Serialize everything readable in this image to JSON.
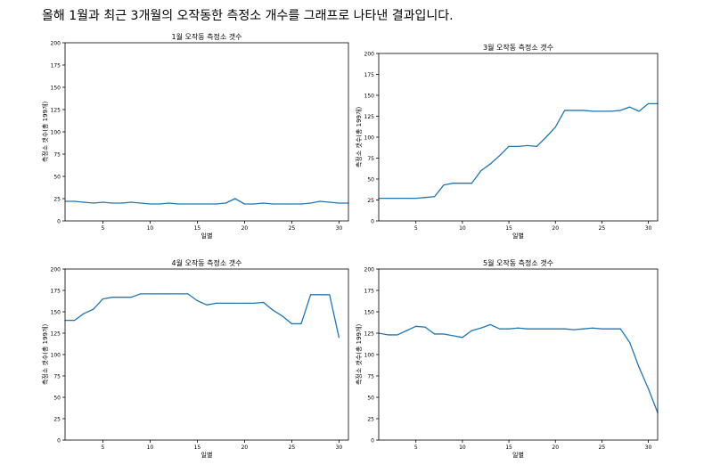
{
  "heading": "올해 1월과 최근 3개월의 오작동한 측정소 개수를 그래프로 나타낸 결과입니다.",
  "line_color": "#1f77b4",
  "chart_data": [
    {
      "type": "line",
      "title": "1월 오작동 측정소 갯수",
      "xlabel": "일별",
      "ylabel": "측정소 갯수(총 199개)",
      "xlim": [
        1,
        31
      ],
      "ylim": [
        0,
        200
      ],
      "xticks": [
        5,
        10,
        15,
        20,
        25,
        30
      ],
      "yticks": [
        0,
        25,
        50,
        75,
        100,
        125,
        150,
        175,
        200
      ],
      "x": [
        1,
        2,
        3,
        4,
        5,
        6,
        7,
        8,
        9,
        10,
        11,
        12,
        13,
        14,
        15,
        16,
        17,
        18,
        19,
        20,
        21,
        22,
        23,
        24,
        25,
        26,
        27,
        28,
        29,
        30,
        31
      ],
      "values": [
        22,
        22,
        21,
        20,
        21,
        20,
        20,
        21,
        20,
        19,
        19,
        20,
        19,
        19,
        19,
        19,
        19,
        20,
        25,
        19,
        19,
        20,
        19,
        19,
        19,
        19,
        20,
        22,
        21,
        20,
        20
      ]
    },
    {
      "type": "line",
      "title": "3월 오작동 측정소 갯수",
      "xlabel": "일별",
      "ylabel": "측정소 갯수(총 199개)",
      "xlim": [
        1,
        31
      ],
      "ylim": [
        0,
        200
      ],
      "xticks": [
        5,
        10,
        15,
        20,
        25,
        30
      ],
      "yticks": [
        0,
        25,
        50,
        75,
        100,
        125,
        150,
        175,
        200
      ],
      "x": [
        1,
        2,
        3,
        4,
        5,
        6,
        7,
        8,
        9,
        10,
        11,
        12,
        13,
        14,
        15,
        16,
        17,
        18,
        19,
        20,
        21,
        22,
        23,
        24,
        25,
        26,
        27,
        28,
        29,
        30,
        31
      ],
      "values": [
        27,
        27,
        27,
        27,
        27,
        28,
        29,
        43,
        45,
        45,
        45,
        60,
        68,
        78,
        89,
        89,
        90,
        89,
        100,
        112,
        132,
        132,
        132,
        131,
        131,
        131,
        132,
        136,
        131,
        140,
        140
      ]
    },
    {
      "type": "line",
      "title": "4월 오작동 측정소 갯수",
      "xlabel": "일별",
      "ylabel": "측정소 갯수(총 199개)",
      "xlim": [
        1,
        31
      ],
      "ylim": [
        0,
        200
      ],
      "xticks": [
        5,
        10,
        15,
        20,
        25,
        30
      ],
      "yticks": [
        0,
        25,
        50,
        75,
        100,
        125,
        150,
        175,
        200
      ],
      "x": [
        1,
        2,
        3,
        4,
        5,
        6,
        7,
        8,
        9,
        10,
        11,
        12,
        13,
        14,
        15,
        16,
        17,
        18,
        19,
        20,
        21,
        22,
        23,
        24,
        25,
        26,
        27,
        28,
        29,
        30
      ],
      "values": [
        140,
        140,
        148,
        153,
        165,
        167,
        167,
        167,
        171,
        171,
        171,
        171,
        171,
        171,
        163,
        158,
        160,
        160,
        160,
        160,
        160,
        161,
        152,
        145,
        136,
        136,
        170,
        170,
        170,
        120
      ]
    },
    {
      "type": "line",
      "title": "5월 오작동 측정소 갯수",
      "xlabel": "일별",
      "ylabel": "측정소 갯수(총 199개)",
      "xlim": [
        1,
        31
      ],
      "ylim": [
        0,
        200
      ],
      "xticks": [
        5,
        10,
        15,
        20,
        25,
        30
      ],
      "yticks": [
        0,
        25,
        50,
        75,
        100,
        125,
        150,
        175,
        200
      ],
      "x": [
        1,
        2,
        3,
        4,
        5,
        6,
        7,
        8,
        9,
        10,
        11,
        12,
        13,
        14,
        15,
        16,
        17,
        18,
        19,
        20,
        21,
        22,
        23,
        24,
        25,
        26,
        27,
        28,
        29,
        30,
        31
      ],
      "values": [
        125,
        123,
        123,
        128,
        133,
        132,
        124,
        124,
        122,
        120,
        128,
        131,
        135,
        130,
        130,
        131,
        130,
        130,
        130,
        130,
        130,
        129,
        130,
        131,
        130,
        130,
        130,
        114,
        85,
        60,
        32
      ]
    }
  ]
}
